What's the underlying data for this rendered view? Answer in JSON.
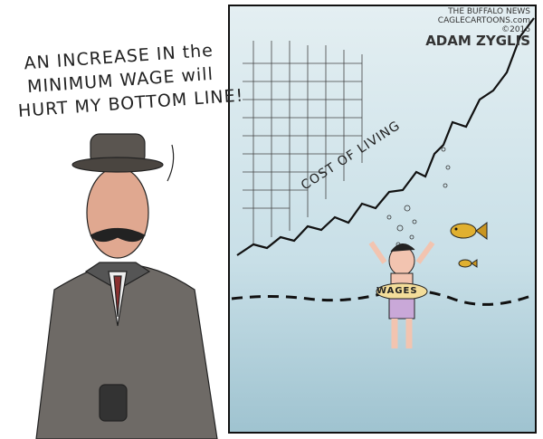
{
  "speech_bubble": {
    "lines": [
      "AN INCREASE IN the",
      "MINIMUM WAGE will",
      "HURT MY BOTTOM LINE!"
    ]
  },
  "signature": {
    "publication": "THE BUFFALO NEWS",
    "site": "CAGLECARTOONS.com",
    "copyright": "©2016",
    "artist": "ADAM ZYGLIS"
  },
  "graph": {
    "line_label": "COST OF LIVING",
    "swimmer_label": "WAGES"
  },
  "colors": {
    "water": "#cfe3ea",
    "water_deep": "#a9cad6",
    "ink": "#222222",
    "fish": "#e0b030",
    "swimsuit": "#c9a8d8",
    "skin": "#f2c4b0"
  }
}
